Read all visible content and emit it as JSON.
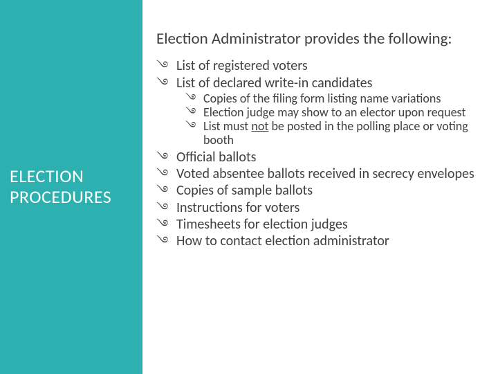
{
  "colors": {
    "sidebar_bg": "#2cb0b0",
    "sidebar_text": "#ffffff",
    "body_text": "#404040",
    "page_bg": "#ffffff"
  },
  "typography": {
    "heading_fontsize": 23,
    "lvl1_fontsize": 20,
    "lvl2_fontsize": 18,
    "sidebar_fontsize": 26,
    "font_family": "Segoe UI Light"
  },
  "bullet_glyph": "࿓",
  "sidebar": {
    "title_line1": "ELECTION",
    "title_line2": "PROCEDURES"
  },
  "content": {
    "heading": "Election Administrator provides the following:",
    "items": [
      {
        "text": "List of registered voters"
      },
      {
        "text": "List of declared write-in candidates",
        "sub": [
          "Copies of the filing form listing name variations",
          "Election judge may show to an elector upon request",
          "List must |not| be posted in the polling place or voting booth"
        ]
      },
      {
        "text": "Official ballots"
      },
      {
        "text": "Voted absentee ballots received in secrecy envelopes"
      },
      {
        "text": "Copies of sample ballots"
      },
      {
        "text": "Instructions for voters"
      },
      {
        "text": "Timesheets for election judges"
      },
      {
        "text": "How to contact election administrator"
      }
    ]
  }
}
